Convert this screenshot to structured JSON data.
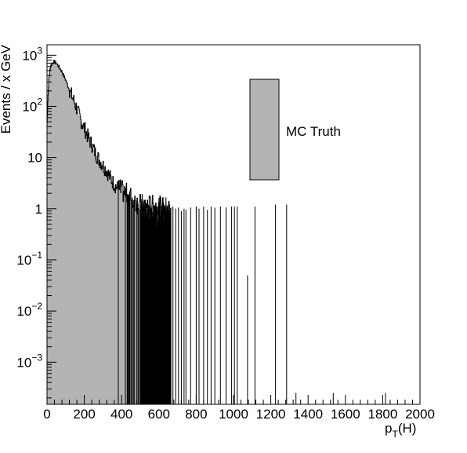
{
  "chart_data": {
    "type": "histogram",
    "xlabel_main": "p",
    "xlabel_sub": "T",
    "xlabel_rest": "(H)",
    "ylabel": "Events / x GeV",
    "xlim": [
      0,
      2000
    ],
    "ylim": [
      0.00015,
      1600
    ],
    "yscale": "log",
    "grid": false,
    "legend_position": "top-right",
    "fill_color": "#b3b3b3",
    "line_color": "#000000",
    "x_ticks": [
      {
        "v": 0,
        "label": "0"
      },
      {
        "v": 200,
        "label": "200"
      },
      {
        "v": 400,
        "label": "400"
      },
      {
        "v": 600,
        "label": "600"
      },
      {
        "v": 800,
        "label": "800"
      },
      {
        "v": 1000,
        "label": "1000"
      },
      {
        "v": 1200,
        "label": "1200"
      },
      {
        "v": 1400,
        "label": "1400"
      },
      {
        "v": 1600,
        "label": "1600"
      },
      {
        "v": 1800,
        "label": "1800"
      },
      {
        "v": 2000,
        "label": "2000"
      }
    ],
    "y_ticks": [
      {
        "v": 0.001,
        "base": "10",
        "exp": "−3"
      },
      {
        "v": 0.01,
        "base": "10",
        "exp": "−2"
      },
      {
        "v": 0.1,
        "base": "10",
        "exp": "−1"
      },
      {
        "v": 1,
        "base": "1",
        "exp": ""
      },
      {
        "v": 10,
        "base": "10",
        "exp": ""
      },
      {
        "v": 100,
        "base": "10",
        "exp": "2"
      },
      {
        "v": 1000,
        "base": "10",
        "exp": "3"
      }
    ],
    "series": [
      {
        "name": "MC Truth",
        "envelope": [
          [
            0,
            40
          ],
          [
            5,
            150
          ],
          [
            10,
            350
          ],
          [
            15,
            520
          ],
          [
            20,
            620
          ],
          [
            30,
            720
          ],
          [
            40,
            740
          ],
          [
            50,
            700
          ],
          [
            60,
            620
          ],
          [
            80,
            480
          ],
          [
            100,
            330
          ],
          [
            120,
            210
          ],
          [
            140,
            140
          ],
          [
            160,
            90
          ],
          [
            180,
            55
          ],
          [
            200,
            38
          ],
          [
            220,
            25
          ],
          [
            240,
            18
          ],
          [
            260,
            12
          ],
          [
            280,
            9
          ],
          [
            300,
            7
          ],
          [
            320,
            5.5
          ],
          [
            340,
            4
          ],
          [
            360,
            3
          ],
          [
            380,
            2.5
          ],
          [
            400,
            2.2
          ],
          [
            420,
            2
          ],
          [
            440,
            1.8
          ],
          [
            460,
            1.5
          ],
          [
            480,
            1.3
          ],
          [
            500,
            1.2
          ],
          [
            520,
            1.2
          ],
          [
            540,
            1.15
          ],
          [
            560,
            1.15
          ],
          [
            580,
            1.1
          ],
          [
            600,
            1.1
          ],
          [
            620,
            1.05
          ],
          [
            640,
            1.05
          ],
          [
            660,
            1
          ]
        ],
        "isolated_bins": [
          [
            675,
            1.1
          ],
          [
            690,
            1
          ],
          [
            705,
            1.05
          ],
          [
            720,
            0.9
          ],
          [
            735,
            1
          ],
          [
            745,
            0.95
          ],
          [
            770,
            1.05
          ],
          [
            800,
            1.1
          ],
          [
            815,
            1
          ],
          [
            840,
            1.1
          ],
          [
            860,
            0.95
          ],
          [
            880,
            1.1
          ],
          [
            900,
            1.05
          ],
          [
            930,
            1.1
          ],
          [
            960,
            1.05
          ],
          [
            990,
            1.1
          ],
          [
            1005,
            1.1
          ],
          [
            1020,
            1.1
          ],
          [
            1075,
            0.05
          ],
          [
            1115,
            1.1
          ],
          [
            1225,
            1.2
          ],
          [
            1285,
            1.2
          ]
        ],
        "isolated_bins_high": [
          [
            1335,
            0.00025
          ],
          [
            1535,
            0.00025
          ],
          [
            1815,
            0.00025
          ]
        ]
      }
    ]
  }
}
